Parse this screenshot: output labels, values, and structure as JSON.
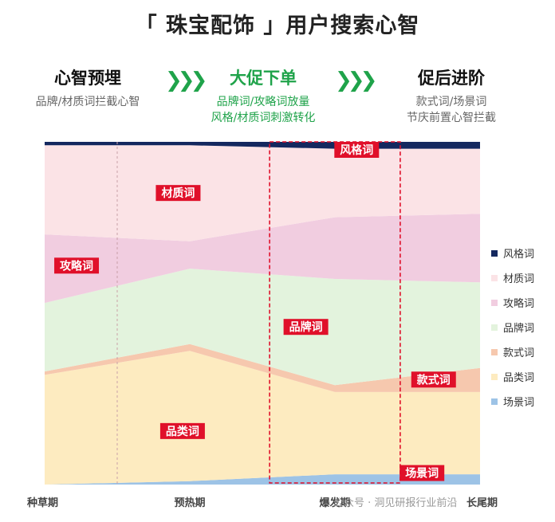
{
  "title": "「 珠宝配饰 」用户搜索心智",
  "stages": [
    {
      "name": "心智预埋",
      "desc": [
        "品牌/材质词拦截心智"
      ]
    },
    {
      "name": "大促下单",
      "desc": [
        "品牌词/攻略词放量",
        "风格/材质词刺激转化"
      ]
    },
    {
      "name": "促后进阶",
      "desc": [
        "款式词/场景词",
        "节庆前置心智拦截"
      ]
    }
  ],
  "arrow_glyph": "❯❯❯",
  "watermark": "公众号 · 洞见研报行业前沿",
  "chart_data": {
    "type": "area",
    "stacked": true,
    "normalized": true,
    "x": [
      "种草期",
      "预热期",
      "爆发期",
      "长尾期"
    ],
    "series": [
      {
        "name": "场景词",
        "color": "#9dc3e6",
        "values": [
          0,
          1,
          3,
          3
        ]
      },
      {
        "name": "品类词",
        "color": "#fdebc0",
        "values": [
          32,
          38,
          24,
          24
        ]
      },
      {
        "name": "款式词",
        "color": "#f6c8ae",
        "values": [
          1,
          2,
          2,
          7
        ]
      },
      {
        "name": "品牌词",
        "color": "#e3f3dd",
        "values": [
          20,
          22,
          31,
          25
        ]
      },
      {
        "name": "攻略词",
        "color": "#f1cde0",
        "values": [
          20,
          8,
          18,
          20
        ]
      },
      {
        "name": "材质词",
        "color": "#fbe3e6",
        "values": [
          26,
          28,
          20,
          19
        ]
      },
      {
        "name": "风格词",
        "color": "#14285f",
        "values": [
          1,
          1,
          2,
          2
        ]
      }
    ],
    "legend_order": [
      "风格词",
      "材质词",
      "攻略词",
      "品牌词",
      "款式词",
      "品类词",
      "场景词"
    ],
    "legend_position": "right",
    "annotations": [
      "风格词",
      "材质词",
      "攻略词",
      "品牌词",
      "款式词",
      "品类词",
      "场景词"
    ],
    "highlight_period": "爆发期"
  }
}
